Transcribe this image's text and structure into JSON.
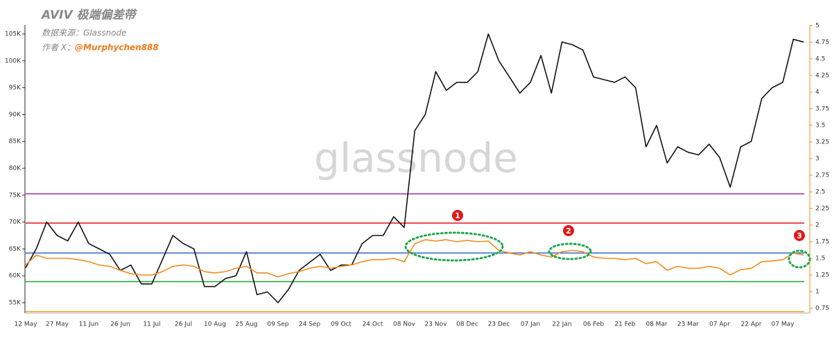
{
  "chart_data": {
    "type": "line",
    "title": "AVIV 极端偏差带",
    "source": "数据来源：Glassnode",
    "author_label": "作者 X：",
    "author": "@Murphychen888",
    "watermark": "glassnode",
    "callouts": [
      "1",
      "2",
      "3"
    ],
    "categories": [
      "12 May",
      null,
      null,
      "27 May",
      null,
      null,
      "11 Jun",
      null,
      null,
      "26 Jun",
      null,
      null,
      "11 Jul",
      null,
      null,
      "26 Jul",
      null,
      null,
      "10 Aug",
      null,
      null,
      "25 Aug",
      null,
      null,
      "09 Sep",
      null,
      null,
      "24 Sep",
      null,
      null,
      "09 Oct",
      null,
      null,
      "24 Oct",
      null,
      null,
      "08 Nov",
      null,
      null,
      "23 Nov",
      null,
      null,
      "08 Dec",
      null,
      null,
      "23 Dec",
      null,
      null,
      "07 Jan",
      null,
      null,
      "22 Jan",
      null,
      null,
      "06 Feb",
      null,
      null,
      "21 Feb",
      null,
      null,
      "08 Mar",
      null,
      null,
      "23 Mar",
      null,
      null,
      "07 Apr",
      null,
      null,
      "22 Apr",
      null,
      null,
      "07 May",
      null,
      null
    ],
    "series": [
      {
        "color": "#111111",
        "values": [
          61500,
          65000,
          70000,
          67500,
          66500,
          70000,
          66000,
          65000,
          64000,
          61000,
          62000,
          58500,
          58500,
          63000,
          67500,
          66000,
          65000,
          58000,
          58000,
          59500,
          60000,
          64500,
          56500,
          57000,
          55000,
          57500,
          61000,
          62500,
          64000,
          61000,
          62000,
          62000,
          66000,
          67500,
          67500,
          71000,
          69000,
          87000,
          90000,
          98000,
          94500,
          96000,
          96000,
          98000,
          105000,
          100000,
          97000,
          94000,
          96000,
          101000,
          94000,
          103500,
          103000,
          102000,
          97000,
          96500,
          96000,
          97000,
          95000,
          84000,
          88000,
          81000,
          84000,
          83000,
          82500,
          84500,
          82000,
          76500,
          84000,
          85000,
          93000,
          95000,
          96000,
          104000,
          103500
        ]
      },
      {
        "color": "#f28c1e",
        "axis": "y2",
        "values": [
          1.4,
          1.55,
          1.5,
          1.5,
          1.5,
          1.48,
          1.45,
          1.4,
          1.38,
          1.32,
          1.27,
          1.25,
          1.25,
          1.3,
          1.38,
          1.4,
          1.38,
          1.3,
          1.28,
          1.3,
          1.35,
          1.38,
          1.28,
          1.28,
          1.22,
          1.27,
          1.3,
          1.35,
          1.38,
          1.35,
          1.38,
          1.4,
          1.45,
          1.48,
          1.48,
          1.5,
          1.45,
          1.72,
          1.78,
          1.76,
          1.78,
          1.75,
          1.77,
          1.75,
          1.76,
          1.62,
          1.58,
          1.55,
          1.6,
          1.55,
          1.52,
          1.6,
          1.62,
          1.6,
          1.52,
          1.5,
          1.5,
          1.48,
          1.5,
          1.42,
          1.45,
          1.32,
          1.38,
          1.35,
          1.35,
          1.38,
          1.35,
          1.25,
          1.33,
          1.35,
          1.45,
          1.46,
          1.48,
          1.58,
          1.55
        ]
      }
    ],
    "reference_lines": [
      {
        "value": 2.47,
        "color": "#b23cb2",
        "axis": "y2"
      },
      {
        "value": 2.03,
        "color": "#e0242a",
        "axis": "y2"
      },
      {
        "value": 1.58,
        "color": "#3a6fd0",
        "axis": "y2"
      },
      {
        "value": 1.15,
        "color": "#2aaa3a",
        "axis": "y2"
      },
      {
        "value": 0.7,
        "color": "#f0a830",
        "axis": "y2"
      }
    ],
    "ylim": [
      53070,
      106680
    ],
    "yticks": [
      {
        "value": 55000,
        "label": "55K"
      },
      {
        "value": 60000,
        "label": "60K"
      },
      {
        "value": 65000,
        "label": "65K"
      },
      {
        "value": 70000,
        "label": "70K"
      },
      {
        "value": 75000,
        "label": "75K"
      },
      {
        "value": 80000,
        "label": "80K"
      },
      {
        "value": 85000,
        "label": "85K"
      },
      {
        "value": 90000,
        "label": "90K"
      },
      {
        "value": 95000,
        "label": "95K"
      },
      {
        "value": 100000,
        "label": "100K"
      },
      {
        "value": 105000,
        "label": "105K"
      }
    ],
    "y2lim": [
      0.677,
      5.01
    ],
    "y2ticks": [
      0.75,
      1,
      1.25,
      1.5,
      1.75,
      2,
      2.25,
      2.5,
      2.75,
      3,
      3.25,
      3.5,
      3.75,
      4,
      4.25,
      4.5,
      4.75,
      5
    ],
    "y2_color": "#f28c1e"
  }
}
